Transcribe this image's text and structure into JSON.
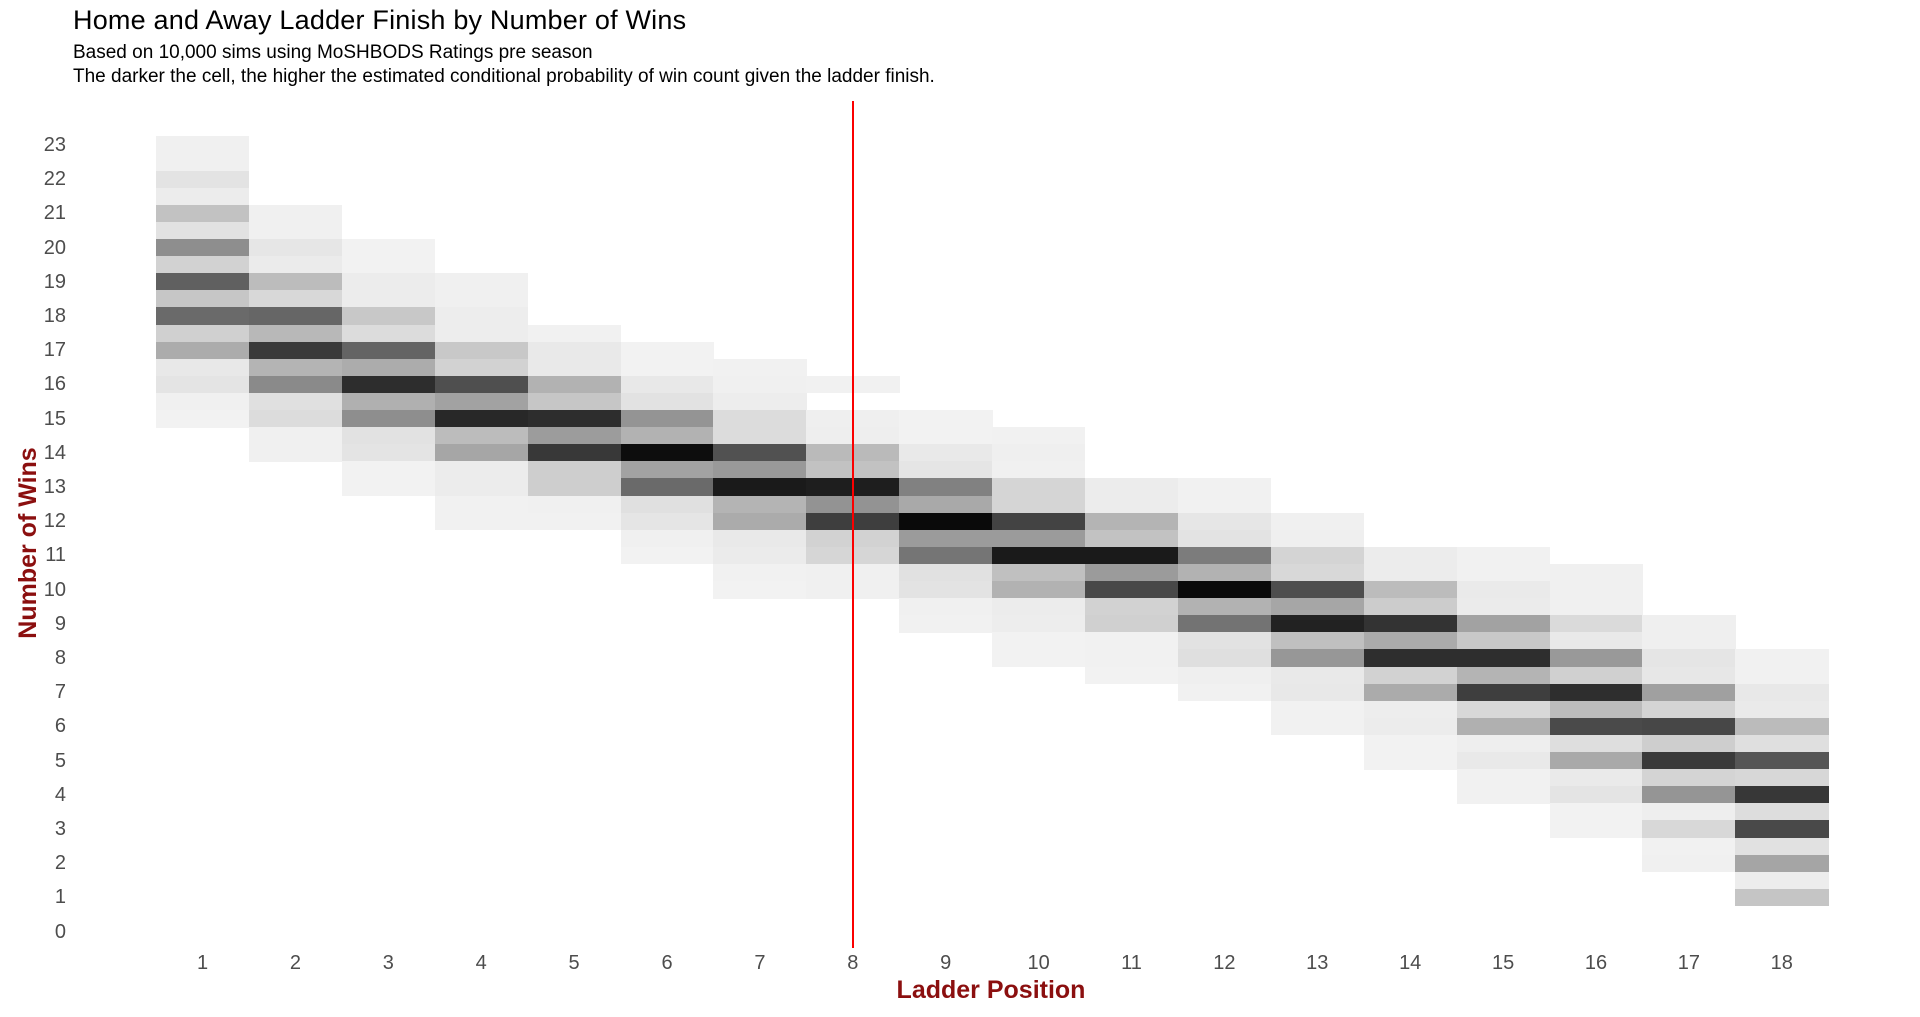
{
  "chart_data": {
    "type": "heatmap",
    "title": "Home and Away Ladder Finish by Number of Wins",
    "subtitle": "Based on 10,000 sims using MoSHBODS Ratings pre season",
    "note": "The darker the cell, the higher the estimated conditional probability of win count given the ladder finish.",
    "xlabel": "Ladder Position",
    "ylabel": "Number of Wins",
    "x_ticks": [
      1,
      2,
      3,
      4,
      5,
      6,
      7,
      8,
      9,
      10,
      11,
      12,
      13,
      14,
      15,
      16,
      17,
      18
    ],
    "y_ticks": [
      0,
      1,
      2,
      3,
      4,
      5,
      6,
      7,
      8,
      9,
      10,
      11,
      12,
      13,
      14,
      15,
      16,
      17,
      18,
      19,
      20,
      21,
      22,
      23
    ],
    "wins_resolution": 0.5,
    "grid": false,
    "legend": "none",
    "background_color": "#ffffff",
    "tick_label_color": "#4d4d4d",
    "axis_title_color": "#8b0f0f",
    "reference_line": {
      "x": 8,
      "color": "#fb0000"
    },
    "columns": [
      {
        "position": 1,
        "cells": [
          [
            23,
            "#f0f0f0"
          ],
          [
            22.5,
            "#f0f0f0"
          ],
          [
            22,
            "#e3e3e3"
          ],
          [
            21.5,
            "#ececec"
          ],
          [
            21,
            "#c2c2c2"
          ],
          [
            20.5,
            "#e2e2e2"
          ],
          [
            20,
            "#8e8e8e"
          ],
          [
            19.5,
            "#d2d2d2"
          ],
          [
            19,
            "#606060"
          ],
          [
            18.5,
            "#c6c6c6"
          ],
          [
            18,
            "#6a6a6a"
          ],
          [
            17.5,
            "#d0d0d0"
          ],
          [
            17,
            "#acacac"
          ],
          [
            16.5,
            "#e8e8e8"
          ],
          [
            16,
            "#e4e4e4"
          ],
          [
            15.5,
            "#f0f0f0"
          ],
          [
            15,
            "#f2f2f2"
          ]
        ]
      },
      {
        "position": 2,
        "cells": [
          [
            21,
            "#f0f0f0"
          ],
          [
            20.5,
            "#f0f0f0"
          ],
          [
            20,
            "#e6e6e6"
          ],
          [
            19.5,
            "#ebebeb"
          ],
          [
            19,
            "#bcbcbc"
          ],
          [
            18.5,
            "#d8d8d8"
          ],
          [
            18,
            "#666666"
          ],
          [
            17.5,
            "#b8b8b8"
          ],
          [
            17,
            "#3a3a3a"
          ],
          [
            16.5,
            "#b4b4b4"
          ],
          [
            16,
            "#8a8a8a"
          ],
          [
            15.5,
            "#e0e0e0"
          ],
          [
            15,
            "#dcdcdc"
          ],
          [
            14.5,
            "#f0f0f0"
          ],
          [
            14,
            "#f0f0f0"
          ]
        ]
      },
      {
        "position": 3,
        "cells": [
          [
            20,
            "#f2f2f2"
          ],
          [
            19.5,
            "#f2f2f2"
          ],
          [
            19,
            "#ececec"
          ],
          [
            18.5,
            "#ececec"
          ],
          [
            18,
            "#c8c8c8"
          ],
          [
            17.5,
            "#dcdcdc"
          ],
          [
            17,
            "#646464"
          ],
          [
            16.5,
            "#acacac"
          ],
          [
            16,
            "#2d2d2d"
          ],
          [
            15.5,
            "#b0b0b0"
          ],
          [
            15,
            "#8e8e8e"
          ],
          [
            14.5,
            "#e2e2e2"
          ],
          [
            14,
            "#e4e4e4"
          ],
          [
            13.5,
            "#f2f2f2"
          ],
          [
            13,
            "#f2f2f2"
          ]
        ]
      },
      {
        "position": 4,
        "cells": [
          [
            19,
            "#f0f0f0"
          ],
          [
            18.5,
            "#f0f0f0"
          ],
          [
            18,
            "#ededed"
          ],
          [
            17.5,
            "#ededed"
          ],
          [
            17,
            "#c8c8c8"
          ],
          [
            16.5,
            "#d2d2d2"
          ],
          [
            16,
            "#4f4f4f"
          ],
          [
            15.5,
            "#a2a2a2"
          ],
          [
            15,
            "#282828"
          ],
          [
            14.5,
            "#bcbcbc"
          ],
          [
            14,
            "#a6a6a6"
          ],
          [
            13.5,
            "#ececec"
          ],
          [
            13,
            "#ececec"
          ],
          [
            12.5,
            "#f1f1f1"
          ],
          [
            12,
            "#f1f1f1"
          ]
        ]
      },
      {
        "position": 5,
        "cells": [
          [
            17.5,
            "#f1f1f1"
          ],
          [
            17,
            "#e9e9e9"
          ],
          [
            16.5,
            "#e9e9e9"
          ],
          [
            16,
            "#b2b2b2"
          ],
          [
            15.5,
            "#c6c6c6"
          ],
          [
            15,
            "#2d2d2d"
          ],
          [
            14.5,
            "#9c9c9c"
          ],
          [
            14,
            "#383838"
          ],
          [
            13.5,
            "#cecece"
          ],
          [
            13,
            "#cecece"
          ],
          [
            12.5,
            "#f0f0f0"
          ],
          [
            12,
            "#f1f1f1"
          ]
        ]
      },
      {
        "position": 6,
        "cells": [
          [
            17,
            "#f2f2f2"
          ],
          [
            16.5,
            "#f2f2f2"
          ],
          [
            16,
            "#e8e8e8"
          ],
          [
            15.5,
            "#e2e2e2"
          ],
          [
            15,
            "#949494"
          ],
          [
            14.5,
            "#b2b2b2"
          ],
          [
            14,
            "#0d0d0d"
          ],
          [
            13.5,
            "#a2a2a2"
          ],
          [
            13,
            "#6a6a6a"
          ],
          [
            12.5,
            "#e0e0e0"
          ],
          [
            12,
            "#e5e5e5"
          ],
          [
            11.5,
            "#f0f0f0"
          ],
          [
            11,
            "#f2f2f2"
          ]
        ]
      },
      {
        "position": 7,
        "cells": [
          [
            16.5,
            "#f1f1f1"
          ],
          [
            16,
            "#f0f0f0"
          ],
          [
            15.5,
            "#ededed"
          ],
          [
            15,
            "#dcdcdc"
          ],
          [
            14.5,
            "#dcdcdc"
          ],
          [
            14,
            "#515151"
          ],
          [
            13.5,
            "#999999"
          ],
          [
            13,
            "#1a1a1a"
          ],
          [
            12.5,
            "#b4b4b4"
          ],
          [
            12,
            "#ababab"
          ],
          [
            11.5,
            "#e9e9e9"
          ],
          [
            11,
            "#ebebeb"
          ],
          [
            10.5,
            "#f1f1f1"
          ],
          [
            10,
            "#f2f2f2"
          ]
        ]
      },
      {
        "position": 8,
        "cells": [
          [
            16,
            "#f1f1f1"
          ],
          [
            15,
            "#efefef"
          ],
          [
            14.5,
            "#eeeeee"
          ],
          [
            14,
            "#bababa"
          ],
          [
            13.5,
            "#c2c2c2"
          ],
          [
            13,
            "#1e1e1e"
          ],
          [
            12.5,
            "#939393"
          ],
          [
            12,
            "#3e3e3e"
          ],
          [
            11.5,
            "#d2d2d2"
          ],
          [
            11,
            "#d6d6d6"
          ],
          [
            10.5,
            "#f0f0f0"
          ],
          [
            10,
            "#f0f0f0"
          ]
        ]
      },
      {
        "position": 9,
        "cells": [
          [
            15,
            "#f2f2f2"
          ],
          [
            14.5,
            "#f2f2f2"
          ],
          [
            14,
            "#e9e9e9"
          ],
          [
            13.5,
            "#e5e5e5"
          ],
          [
            13,
            "#818181"
          ],
          [
            12.5,
            "#a9a9a9"
          ],
          [
            12,
            "#0a0a0a"
          ],
          [
            11.5,
            "#9b9b9b"
          ],
          [
            11,
            "#757575"
          ],
          [
            10.5,
            "#e1e1e1"
          ],
          [
            10,
            "#e3e3e3"
          ],
          [
            9.5,
            "#f0f0f0"
          ],
          [
            9,
            "#f1f1f1"
          ]
        ]
      },
      {
        "position": 10,
        "cells": [
          [
            14.5,
            "#f1f1f1"
          ],
          [
            14,
            "#efefef"
          ],
          [
            13.5,
            "#f0f0f0"
          ],
          [
            13,
            "#d5d5d5"
          ],
          [
            12.5,
            "#d5d5d5"
          ],
          [
            12,
            "#434343"
          ],
          [
            11.5,
            "#9b9b9b"
          ],
          [
            11,
            "#1a1a1a"
          ],
          [
            10.5,
            "#c0c0c0"
          ],
          [
            10,
            "#b2b2b2"
          ],
          [
            9.5,
            "#ececec"
          ],
          [
            9,
            "#ededed"
          ],
          [
            8.5,
            "#f2f2f2"
          ],
          [
            8,
            "#f2f2f2"
          ]
        ]
      },
      {
        "position": 11,
        "cells": [
          [
            13,
            "#ececec"
          ],
          [
            12.5,
            "#ececec"
          ],
          [
            12,
            "#b4b4b4"
          ],
          [
            11.5,
            "#c2c2c2"
          ],
          [
            11,
            "#1a1a1a"
          ],
          [
            10.5,
            "#9b9b9b"
          ],
          [
            10,
            "#484848"
          ],
          [
            9.5,
            "#d2d2d2"
          ],
          [
            9,
            "#d0d0d0"
          ],
          [
            8.5,
            "#f1f1f1"
          ],
          [
            8,
            "#f1f1f1"
          ],
          [
            7.5,
            "#f2f2f2"
          ]
        ]
      },
      {
        "position": 12,
        "cells": [
          [
            13,
            "#f1f1f1"
          ],
          [
            12.5,
            "#f1f1f1"
          ],
          [
            12,
            "#e6e6e6"
          ],
          [
            11.5,
            "#e3e3e3"
          ],
          [
            11,
            "#7c7c7c"
          ],
          [
            10.5,
            "#b2b2b2"
          ],
          [
            10,
            "#0a0a0a"
          ],
          [
            9.5,
            "#b2b2b2"
          ],
          [
            9,
            "#737373"
          ],
          [
            8.5,
            "#e2e2e2"
          ],
          [
            8,
            "#dfdfdf"
          ],
          [
            7.5,
            "#efefef"
          ],
          [
            7,
            "#f1f1f1"
          ]
        ]
      },
      {
        "position": 13,
        "cells": [
          [
            12,
            "#f0f0f0"
          ],
          [
            11.5,
            "#efefef"
          ],
          [
            11,
            "#d4d4d4"
          ],
          [
            10.5,
            "#d8d8d8"
          ],
          [
            10,
            "#4e4e4e"
          ],
          [
            9.5,
            "#a6a6a6"
          ],
          [
            9,
            "#222222"
          ],
          [
            8.5,
            "#c0c0c0"
          ],
          [
            8,
            "#979797"
          ],
          [
            7.5,
            "#e9e9e9"
          ],
          [
            7,
            "#e8e8e8"
          ],
          [
            6.5,
            "#f1f1f1"
          ],
          [
            6,
            "#f1f1f1"
          ]
        ]
      },
      {
        "position": 14,
        "cells": [
          [
            11,
            "#ececec"
          ],
          [
            10.5,
            "#ececec"
          ],
          [
            10,
            "#bcbcbc"
          ],
          [
            9.5,
            "#cccccc"
          ],
          [
            9,
            "#333333"
          ],
          [
            8.5,
            "#ababab"
          ],
          [
            8,
            "#2e2e2e"
          ],
          [
            7.5,
            "#d2d2d2"
          ],
          [
            7,
            "#ababab"
          ],
          [
            6.5,
            "#ededed"
          ],
          [
            6,
            "#ececec"
          ],
          [
            5.5,
            "#f2f2f2"
          ],
          [
            5,
            "#f2f2f2"
          ]
        ]
      },
      {
        "position": 15,
        "cells": [
          [
            11,
            "#f1f1f1"
          ],
          [
            10.5,
            "#f1f1f1"
          ],
          [
            10,
            "#eaeaea"
          ],
          [
            9.5,
            "#ebebeb"
          ],
          [
            9,
            "#a2a2a2"
          ],
          [
            8.5,
            "#c8c8c8"
          ],
          [
            8,
            "#2e2e2e"
          ],
          [
            7.5,
            "#b4b4b4"
          ],
          [
            7,
            "#3e3e3e"
          ],
          [
            6.5,
            "#d8d8d8"
          ],
          [
            6,
            "#b0b0b0"
          ],
          [
            5.5,
            "#eeeeee"
          ],
          [
            5,
            "#e9e9e9"
          ],
          [
            4.5,
            "#f1f1f1"
          ],
          [
            4,
            "#f1f1f1"
          ]
        ]
      },
      {
        "position": 16,
        "cells": [
          [
            10.5,
            "#f0f0f0"
          ],
          [
            10,
            "#f0f0f0"
          ],
          [
            9.5,
            "#f0f0f0"
          ],
          [
            9,
            "#dadada"
          ],
          [
            8.5,
            "#e9e9e9"
          ],
          [
            8,
            "#999999"
          ],
          [
            7.5,
            "#d0d0d0"
          ],
          [
            7,
            "#2e2e2e"
          ],
          [
            6.5,
            "#bcbcbc"
          ],
          [
            6,
            "#4a4a4a"
          ],
          [
            5.5,
            "#dedede"
          ],
          [
            5,
            "#a9a9a9"
          ],
          [
            4.5,
            "#eaeaea"
          ],
          [
            4,
            "#e4e4e4"
          ],
          [
            3.5,
            "#f2f2f2"
          ],
          [
            3,
            "#f2f2f2"
          ]
        ]
      },
      {
        "position": 17,
        "cells": [
          [
            9,
            "#efefef"
          ],
          [
            8.5,
            "#efefef"
          ],
          [
            8,
            "#e5e5e5"
          ],
          [
            7.5,
            "#e7e7e7"
          ],
          [
            7,
            "#a0a0a0"
          ],
          [
            6.5,
            "#d4d4d4"
          ],
          [
            6,
            "#474747"
          ],
          [
            5.5,
            "#cecece"
          ],
          [
            5,
            "#3a3a3a"
          ],
          [
            4.5,
            "#d4d4d4"
          ],
          [
            4,
            "#959595"
          ],
          [
            3.5,
            "#eeeeee"
          ],
          [
            3,
            "#d8d8d8"
          ],
          [
            2.5,
            "#f1f1f1"
          ],
          [
            2,
            "#f0f0f0"
          ]
        ]
      },
      {
        "position": 18,
        "cells": [
          [
            8,
            "#f1f1f1"
          ],
          [
            7.5,
            "#f1f1f1"
          ],
          [
            7,
            "#e8e8e8"
          ],
          [
            6.5,
            "#eaeaea"
          ],
          [
            6,
            "#bbbbbb"
          ],
          [
            5.5,
            "#dfdfdf"
          ],
          [
            5,
            "#555555"
          ],
          [
            4.5,
            "#d7d7d7"
          ],
          [
            4,
            "#373737"
          ],
          [
            3.5,
            "#dddddd"
          ],
          [
            3,
            "#494949"
          ],
          [
            2.5,
            "#e1e1e1"
          ],
          [
            2,
            "#a5a5a5"
          ],
          [
            1.5,
            "#ededed"
          ],
          [
            1,
            "#c5c5c5"
          ]
        ]
      }
    ]
  }
}
